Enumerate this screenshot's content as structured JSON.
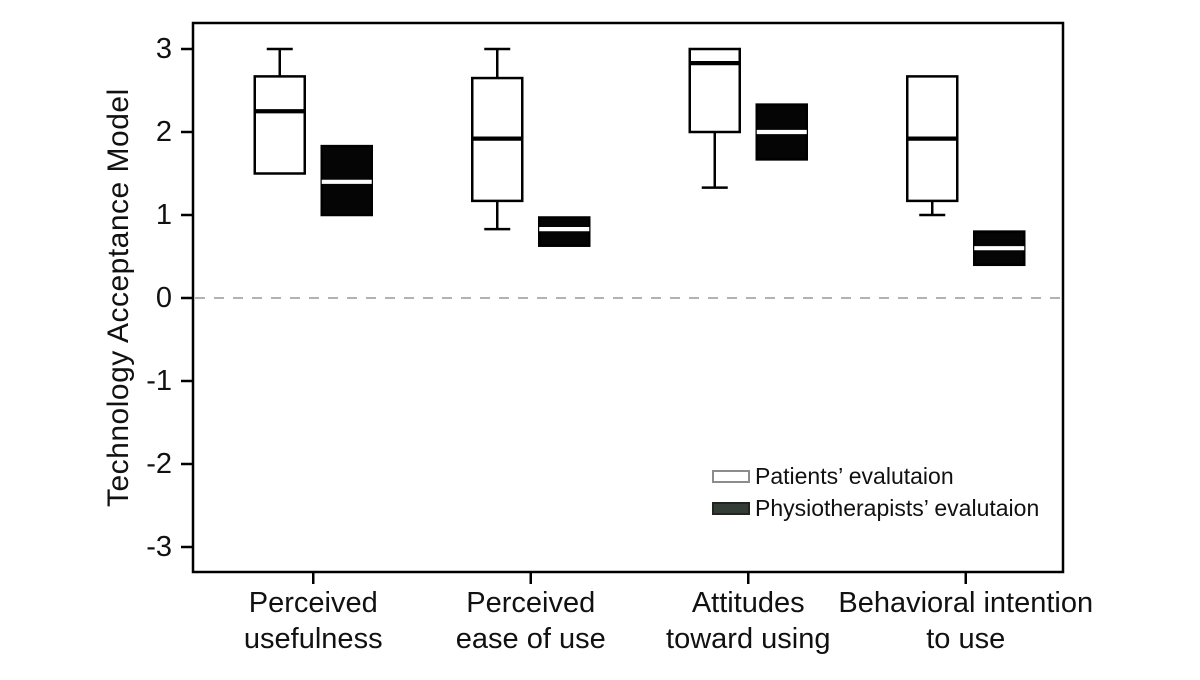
{
  "figure": {
    "kind": "boxplot-figure",
    "background": "#ffffff"
  },
  "chart_data": {
    "type": "boxplot",
    "title": "",
    "xlabel": "",
    "ylabel": "Technology Acceptance Model",
    "ylim": [
      -3.3,
      3.3
    ],
    "yticks": [
      3,
      2,
      1,
      0,
      -1,
      -2,
      -3
    ],
    "ytick_labels": [
      "3",
      "2",
      "1",
      "0",
      "-1",
      "-2",
      "-3"
    ],
    "grid": false,
    "zero_line": {
      "value": 0,
      "style": "dashed",
      "color": "#999999"
    },
    "legend_position": "inside-lower-right",
    "categories": [
      [
        "Perceived",
        "usefulness"
      ],
      [
        "Perceived",
        "ease of use"
      ],
      [
        "Attitudes",
        "toward using"
      ],
      [
        "Behavioral intention",
        "to use"
      ]
    ],
    "series": [
      {
        "name": "Patients’ evalutaion",
        "fill": "#ffffff",
        "median_color": "#000000",
        "boxes": [
          {
            "whisker_low": null,
            "q1": 1.5,
            "median": 2.25,
            "q3": 2.67,
            "whisker_high": 3.0
          },
          {
            "whisker_low": 0.83,
            "q1": 1.17,
            "median": 1.92,
            "q3": 2.65,
            "whisker_high": 3.0
          },
          {
            "whisker_low": 1.33,
            "q1": 2.0,
            "median": 2.83,
            "q3": 3.0,
            "whisker_high": null
          },
          {
            "whisker_low": 1.0,
            "q1": 1.17,
            "median": 1.92,
            "q3": 2.67,
            "whisker_high": null
          }
        ]
      },
      {
        "name": "Physiotherapists’ evalutaion",
        "fill": "#050505",
        "median_color": "#ffffff",
        "boxes": [
          {
            "whisker_low": null,
            "q1": 1.0,
            "median": 1.4,
            "q3": 1.83,
            "whisker_high": null
          },
          {
            "whisker_low": null,
            "q1": 0.63,
            "median": 0.83,
            "q3": 0.97,
            "whisker_high": null
          },
          {
            "whisker_low": null,
            "q1": 1.67,
            "median": 2.0,
            "q3": 2.33,
            "whisker_high": null
          },
          {
            "whisker_low": null,
            "q1": 0.4,
            "median": 0.6,
            "q3": 0.8,
            "whisker_high": null
          }
        ]
      }
    ]
  },
  "colors": {
    "frame_stroke": "#000000",
    "text": "#111111",
    "dashed_zero_line": "#999999",
    "patients_box_fill": "#ffffff",
    "physio_box_fill": "#050505",
    "legend_patients_border": "#8c8c8c",
    "legend_physio_fill": "#333d36"
  }
}
